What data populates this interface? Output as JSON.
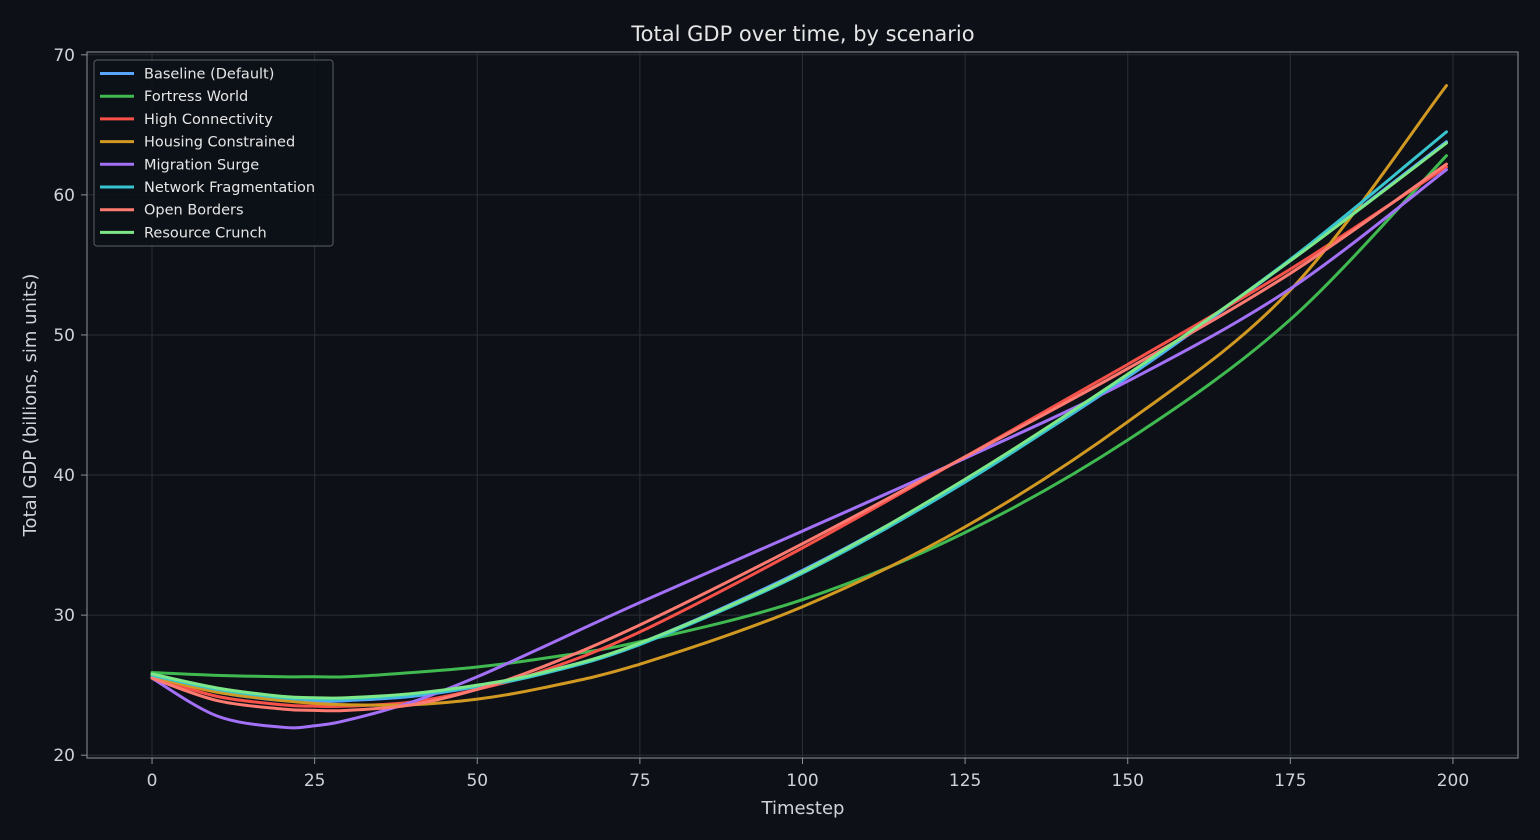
{
  "chart_data": {
    "type": "line",
    "title": "Total GDP over time, by scenario",
    "xlabel": "Timestep",
    "ylabel": "Total GDP (billions, sim units)",
    "xlim": [
      -10,
      210
    ],
    "ylim": [
      19.8,
      70.2
    ],
    "xticks": [
      0,
      25,
      50,
      75,
      100,
      125,
      150,
      175,
      200
    ],
    "yticks": [
      20,
      30,
      40,
      50,
      60,
      70
    ],
    "grid": true,
    "legend_position": "upper-left",
    "x": [
      0,
      10,
      20,
      25,
      30,
      40,
      50,
      60,
      75,
      100,
      125,
      150,
      175,
      199
    ],
    "series": [
      {
        "name": "Baseline (Default)",
        "color": "#58a6ff",
        "values": [
          25.7,
          24.5,
          23.9,
          23.8,
          23.9,
          24.2,
          24.9,
          25.9,
          28.0,
          33.2,
          39.6,
          47.0,
          55.3,
          63.8
        ]
      },
      {
        "name": "Fortress World",
        "color": "#3fb950",
        "values": [
          25.9,
          25.7,
          25.6,
          25.6,
          25.6,
          25.9,
          26.3,
          26.9,
          28.1,
          31.1,
          35.9,
          42.5,
          51.1,
          62.8
        ]
      },
      {
        "name": "High Connectivity",
        "color": "#f85149",
        "values": [
          25.6,
          24.2,
          23.6,
          23.5,
          23.5,
          23.8,
          24.7,
          26.0,
          28.8,
          34.8,
          41.3,
          47.9,
          54.7,
          62.0
        ]
      },
      {
        "name": "Housing Constrained",
        "color": "#d29922",
        "values": [
          25.6,
          24.5,
          23.9,
          23.7,
          23.6,
          23.6,
          24.0,
          24.8,
          26.5,
          30.6,
          36.3,
          43.8,
          53.2,
          67.8
        ]
      },
      {
        "name": "Migration Surge",
        "color": "#a371f7",
        "values": [
          25.5,
          22.8,
          22.0,
          22.1,
          22.5,
          23.8,
          25.6,
          27.7,
          30.9,
          36.0,
          41.2,
          46.7,
          53.3,
          61.8
        ]
      },
      {
        "name": "Network Fragmentation",
        "color": "#39c5cf",
        "values": [
          25.7,
          24.7,
          24.1,
          24.0,
          24.0,
          24.3,
          24.9,
          25.8,
          27.9,
          33.0,
          39.5,
          47.1,
          55.4,
          64.5
        ]
      },
      {
        "name": "Open Borders",
        "color": "#ff7b72",
        "values": [
          25.5,
          23.9,
          23.3,
          23.2,
          23.2,
          23.6,
          24.7,
          26.3,
          29.3,
          35.1,
          41.3,
          47.6,
          54.4,
          62.2
        ]
      },
      {
        "name": "Resource Crunch",
        "color": "#7ee787",
        "values": [
          25.8,
          24.8,
          24.2,
          24.1,
          24.1,
          24.4,
          25.0,
          25.9,
          28.0,
          33.1,
          39.7,
          47.2,
          55.3,
          63.7
        ]
      }
    ]
  },
  "colors": {
    "background": "#0d1117",
    "grid": "#2a2f36",
    "frame": "#7a7f87",
    "text": "#e6e6e6"
  }
}
